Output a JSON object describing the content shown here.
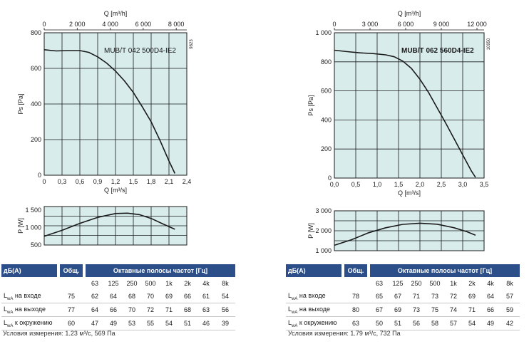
{
  "chart_data": [
    {
      "type": "line",
      "role": "pressure",
      "model_label": "MUB/T 042 500D4-IE2",
      "code": "9823",
      "top_axis": {
        "label": "Q [m³/h]",
        "range": [
          0,
          8640
        ],
        "ticks": [
          0,
          2000,
          4000,
          6000,
          8000
        ],
        "tick_labels": [
          "0",
          "2 000",
          "4 000",
          "6 000",
          "8 000"
        ]
      },
      "xlabel": "Q [m³/s]",
      "x_range": [
        0,
        2.4
      ],
      "x_ticks": [
        0,
        0.3,
        0.6,
        0.9,
        1.2,
        1.5,
        1.8,
        2.1,
        2.4
      ],
      "x_tick_labels": [
        "0",
        "0,3",
        "0,6",
        "0,9",
        "1,2",
        "1,5",
        "1,8",
        "2,1",
        "2,4"
      ],
      "ylabel": "Ps [Pa]",
      "ylim": [
        0,
        800
      ],
      "y_ticks": [
        0,
        200,
        400,
        600,
        800
      ],
      "y_tick_labels": [
        "0",
        "200",
        "400",
        "600",
        "800"
      ],
      "grid": true,
      "series": [
        {
          "x": [
            0,
            0.2,
            0.4,
            0.6,
            0.75,
            0.9,
            1.05,
            1.2,
            1.35,
            1.5,
            1.65,
            1.8,
            1.95,
            2.1,
            2.2
          ],
          "y": [
            705,
            698,
            700,
            700,
            690,
            665,
            630,
            585,
            530,
            465,
            385,
            300,
            195,
            80,
            10
          ]
        }
      ]
    },
    {
      "type": "line",
      "role": "power",
      "xlabel": "",
      "x_range": [
        0,
        2.4
      ],
      "ylabel": "P [W]",
      "ylim": [
        500,
        1600
      ],
      "y_ticks": [
        500,
        1000,
        1500
      ],
      "y_tick_labels": [
        "500",
        "1 000",
        "1 500"
      ],
      "grid": true,
      "series": [
        {
          "x": [
            0,
            0.3,
            0.6,
            0.9,
            1.2,
            1.4,
            1.6,
            1.8,
            2.0,
            2.2
          ],
          "y": [
            750,
            920,
            1120,
            1290,
            1400,
            1410,
            1370,
            1260,
            1100,
            950
          ]
        }
      ]
    },
    {
      "type": "line",
      "role": "pressure",
      "model_label": "MUB/T 062 560D4-IE2",
      "code": "10950",
      "top_axis": {
        "label": "Q [m³/h]",
        "range": [
          0,
          12600
        ],
        "ticks": [
          0,
          3000,
          6000,
          9000,
          12000
        ],
        "tick_labels": [
          "0",
          "3 000",
          "6 000",
          "9 000",
          "12 000"
        ]
      },
      "xlabel": "Q [m³/s]",
      "x_range": [
        0,
        3.5
      ],
      "x_ticks": [
        0,
        0.5,
        1.0,
        1.5,
        2.0,
        2.5,
        3.0,
        3.5
      ],
      "x_tick_labels": [
        "0,0",
        "0,5",
        "1,0",
        "1,5",
        "2,0",
        "2,5",
        "3,0",
        "3,5"
      ],
      "ylabel": "Ps [Pa]",
      "ylim": [
        0,
        1000
      ],
      "y_ticks": [
        0,
        200,
        400,
        600,
        800,
        1000
      ],
      "y_tick_labels": [
        "0",
        "200",
        "400",
        "600",
        "800",
        "1 000"
      ],
      "grid": true,
      "series": [
        {
          "x": [
            0,
            0.3,
            0.6,
            0.9,
            1.2,
            1.4,
            1.6,
            1.8,
            2.0,
            2.2,
            2.4,
            2.6,
            2.8,
            3.0,
            3.2,
            3.3
          ],
          "y": [
            880,
            870,
            862,
            857,
            848,
            835,
            805,
            755,
            680,
            590,
            485,
            380,
            270,
            160,
            50,
            5
          ]
        }
      ]
    },
    {
      "type": "line",
      "role": "power",
      "xlabel": "",
      "x_range": [
        0,
        3.5
      ],
      "ylabel": "P [W]",
      "ylim": [
        1000,
        3000
      ],
      "y_ticks": [
        1000,
        2000,
        3000
      ],
      "y_tick_labels": [
        "1 000",
        "2 000",
        "3 000"
      ],
      "grid": true,
      "series": [
        {
          "x": [
            0,
            0.4,
            0.8,
            1.2,
            1.6,
            2.0,
            2.4,
            2.8,
            3.1,
            3.3
          ],
          "y": [
            1270,
            1550,
            1900,
            2150,
            2320,
            2380,
            2330,
            2150,
            1950,
            1780
          ]
        }
      ]
    }
  ],
  "tables": [
    {
      "head_label": "дБ(A)",
      "head_total": "Общ.",
      "head_bands": "Октавные полосы частот [Гц]",
      "bands": [
        "63",
        "125",
        "250",
        "500",
        "1k",
        "2k",
        "4k",
        "8k"
      ],
      "rows": [
        {
          "l": "L",
          "sub": "wA",
          "rest": " на входе",
          "total": "75",
          "values": [
            "62",
            "64",
            "68",
            "70",
            "69",
            "66",
            "61",
            "54"
          ]
        },
        {
          "l": "L",
          "sub": "wA",
          "rest": " на выходе",
          "total": "77",
          "values": [
            "64",
            "66",
            "70",
            "72",
            "71",
            "68",
            "63",
            "56"
          ]
        },
        {
          "l": "L",
          "sub": "wA",
          "rest": " к окружению",
          "total": "60",
          "values": [
            "47",
            "49",
            "53",
            "55",
            "54",
            "51",
            "46",
            "39"
          ]
        }
      ],
      "condition": "Условия измерения: 1.23 м³/с, 569 Па"
    },
    {
      "head_label": "дБ(A)",
      "head_total": "Общ.",
      "head_bands": "Октавные полосы частот [Гц]",
      "bands": [
        "63",
        "125",
        "250",
        "500",
        "1k",
        "2k",
        "4k",
        "8k"
      ],
      "rows": [
        {
          "l": "L",
          "sub": "wA",
          "rest": " на входе",
          "total": "78",
          "values": [
            "65",
            "67",
            "71",
            "73",
            "72",
            "69",
            "64",
            "57"
          ]
        },
        {
          "l": "L",
          "sub": "wA",
          "rest": " на выходе",
          "total": "80",
          "values": [
            "67",
            "69",
            "73",
            "75",
            "74",
            "71",
            "66",
            "59"
          ]
        },
        {
          "l": "L",
          "sub": "wA",
          "rest": " к окружению",
          "total": "63",
          "values": [
            "50",
            "51",
            "56",
            "58",
            "57",
            "54",
            "49",
            "42"
          ]
        }
      ],
      "condition": "Условия измерения: 1.79 м³/с, 732 Па"
    }
  ],
  "colors": {
    "plot_bg": "#d8ecec",
    "grid": "#1a1a1a",
    "curve": "#1a1a1a",
    "table_header": "#2c4f8a"
  }
}
